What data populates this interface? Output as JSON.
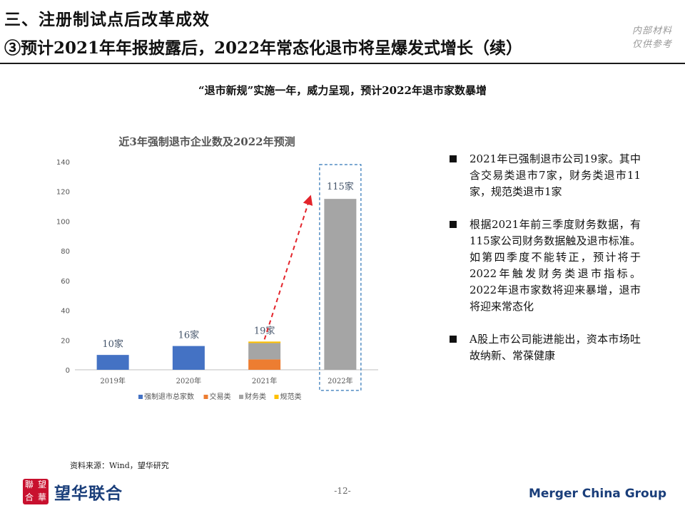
{
  "header": {
    "title_line1": "三、注册制试点后改革成效",
    "title_line2": "③预计2021年年报披露后，2022年常态化退市将呈爆发式增长（续）",
    "internal_line1": "内部材料",
    "internal_line2": "仅供参考"
  },
  "subtitle": "“退市新规”实施一年，威力呈现，预计2022年退市家数暴增",
  "chart_data": {
    "type": "bar",
    "title": "近3年强制退市企业数及2022年预测",
    "categories": [
      "2019年",
      "2020年",
      "2021年",
      "2022年"
    ],
    "series": [
      {
        "name": "强制退市总家数",
        "values": [
          10,
          16,
          null,
          null
        ],
        "color": "#4472c4"
      },
      {
        "name": "交易类",
        "values": [
          null,
          null,
          7,
          null
        ],
        "color": "#ed7d31"
      },
      {
        "name": "财务类",
        "values": [
          null,
          null,
          11,
          115
        ],
        "color": "#a5a5a5"
      },
      {
        "name": "规范类",
        "values": [
          null,
          null,
          1,
          null
        ],
        "color": "#ffc000"
      }
    ],
    "data_labels": [
      "10家",
      "16家",
      "19家",
      "115家"
    ],
    "yticks": [
      0,
      20,
      40,
      60,
      80,
      100,
      120,
      140
    ],
    "ylim": [
      0,
      140
    ],
    "grid": false,
    "legend": "bottom",
    "annotation": "dashed red arrow from 2021 total to 2022 forecast; 2022 bar highlighted with dashed box"
  },
  "bullets": [
    "2021年已强制退市公司19家。其中含交易类退市7家，财务类退市11家，规范类退市1家",
    "根据2021年前三季度财务数据，有115家公司财务数据触及退市标准。如第四季度不能转正，预计将于2022年触发财务类退市指标。 2022年退市家数将迎来暴增，退市将迎来常态化",
    "A股上市公司能进能出，资本市场吐故纳新、常葆健康"
  ],
  "footer": {
    "source": "资料来源：Wind，望华研究",
    "seal_chars": [
      "聯",
      "望",
      "合",
      "華"
    ],
    "brand_cn": "望华联合",
    "page_number": "-12-",
    "brand_en": "Merger China Group"
  }
}
